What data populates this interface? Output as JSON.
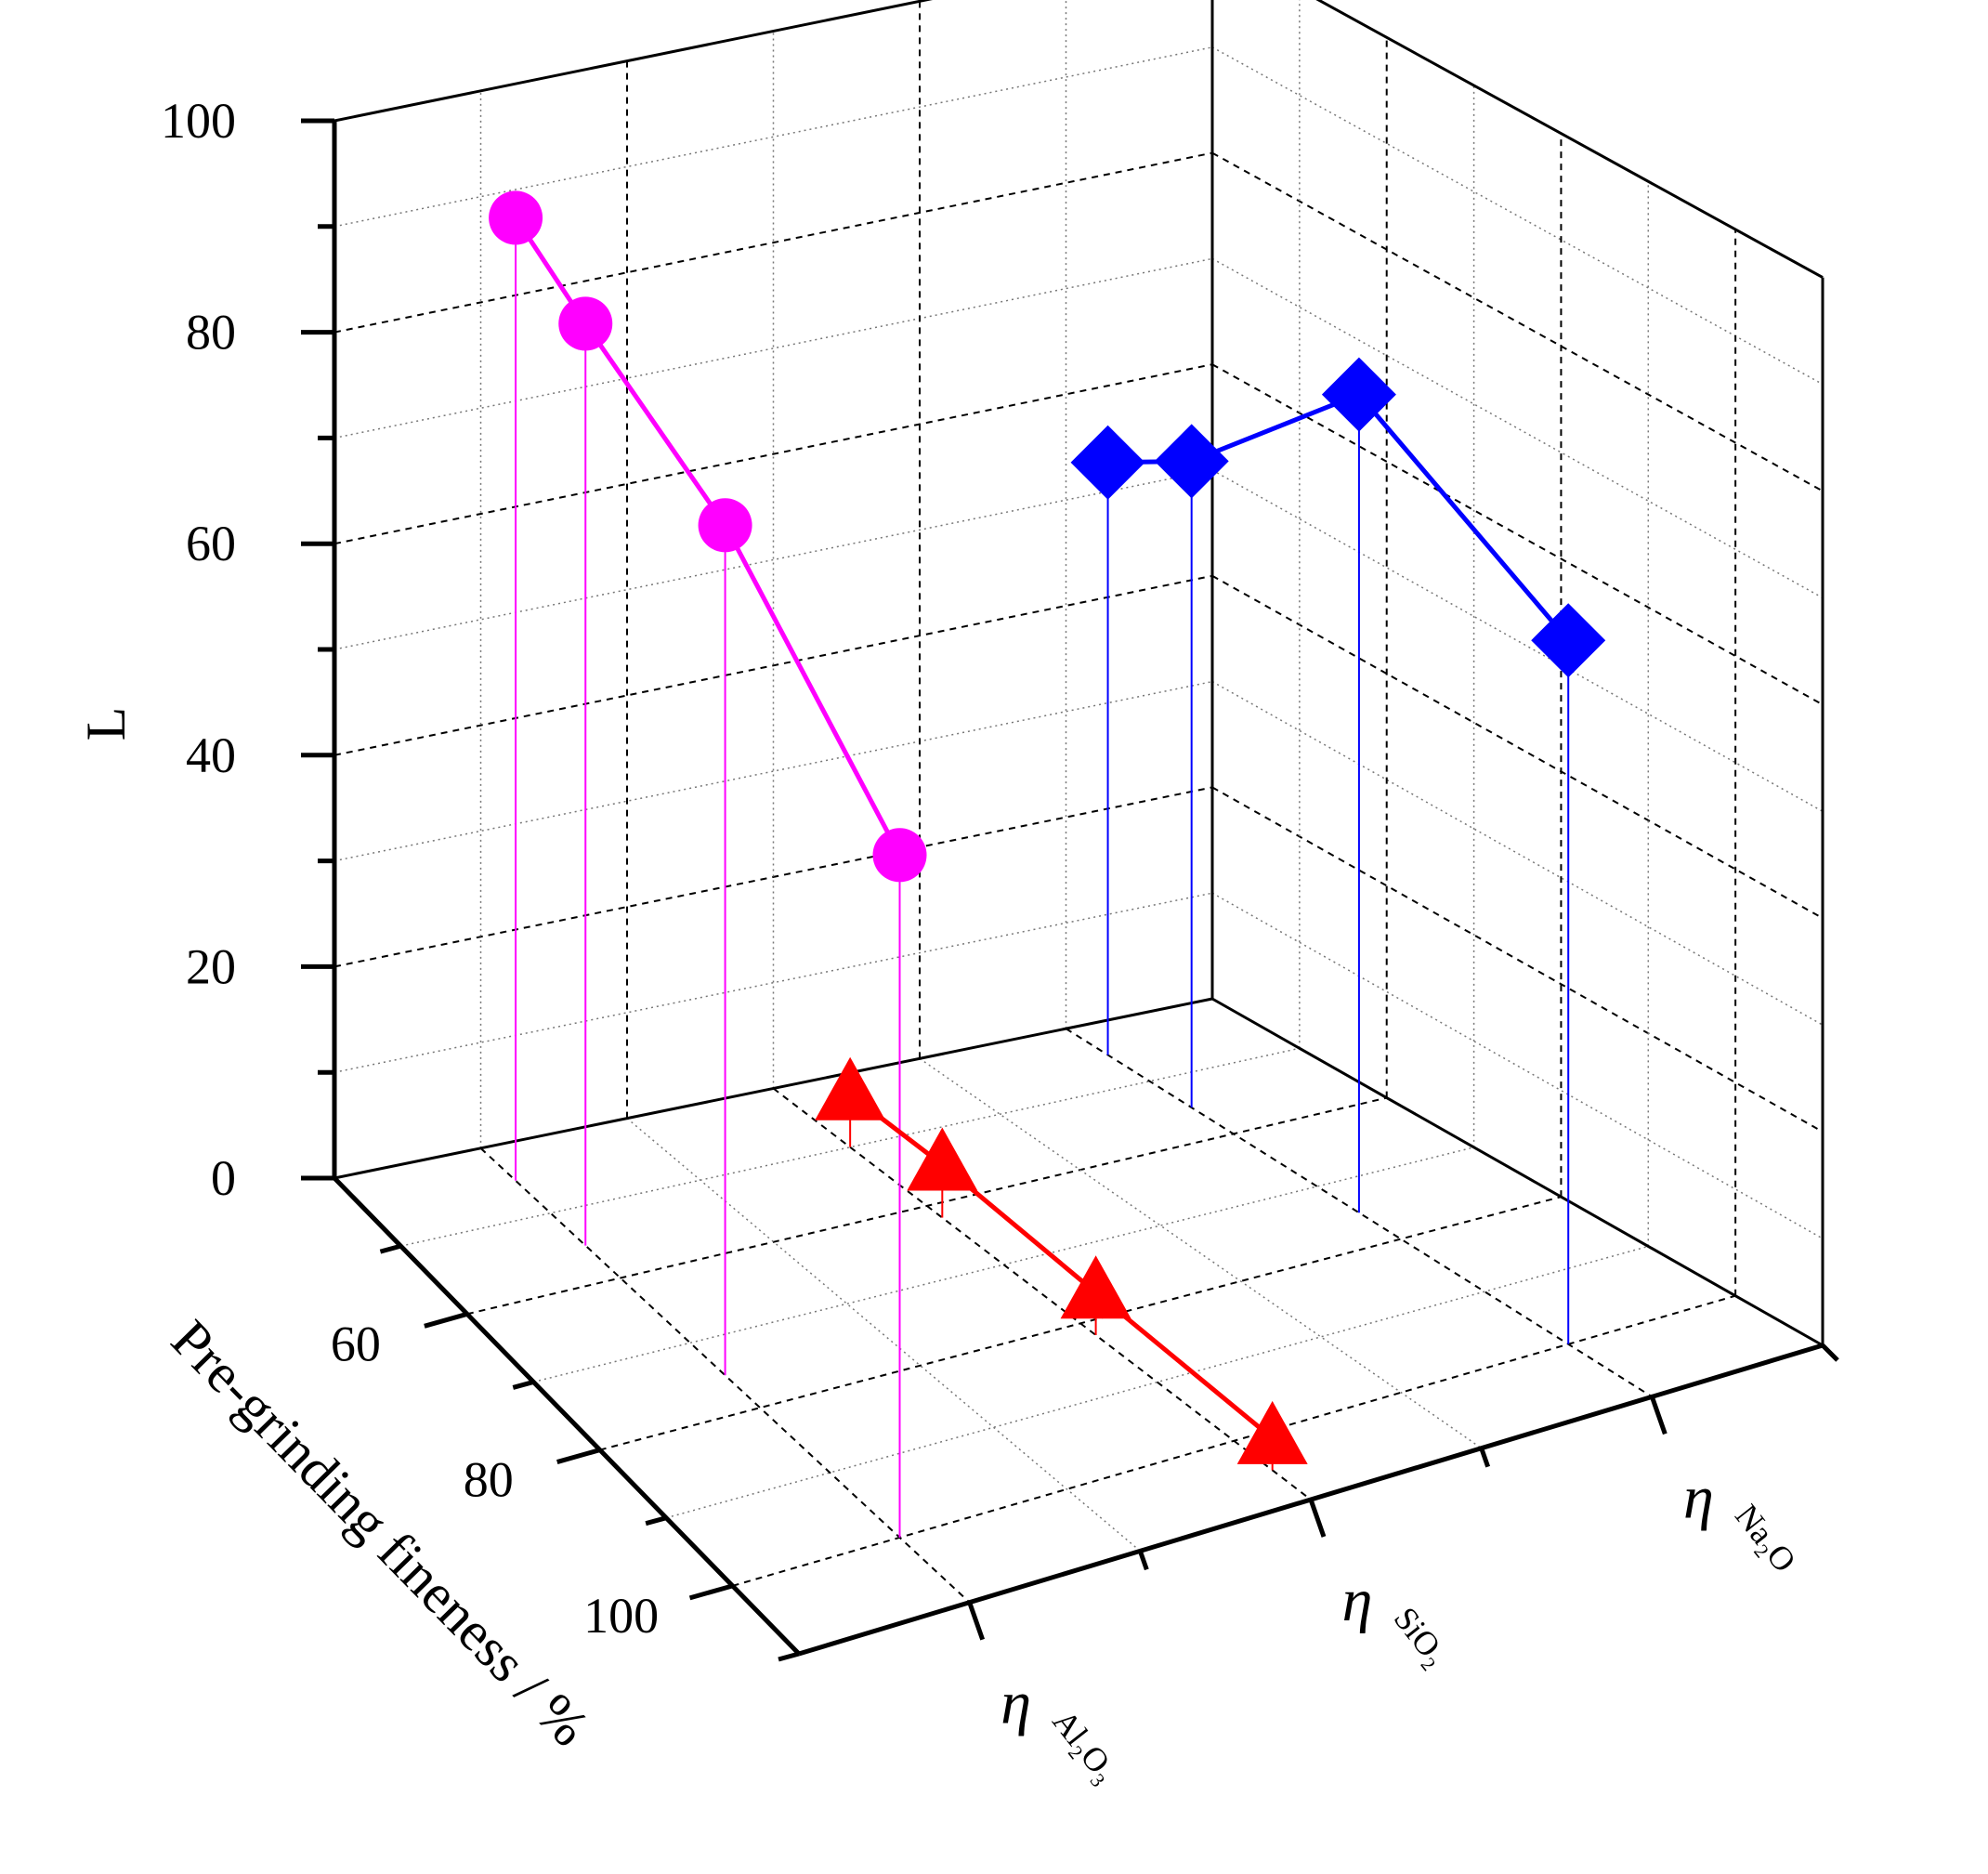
{
  "chart_data": {
    "type": "scatter",
    "projection": "3d-wall",
    "zlabel": "L",
    "ylabel": "Pre-grinding fineness / %",
    "zlim": [
      0,
      100
    ],
    "ylim": [
      40,
      110
    ],
    "ticks_z": [
      "0",
      "20",
      "40",
      "60",
      "80",
      "100"
    ],
    "ticks_y": [
      "60",
      "80",
      "100"
    ],
    "categories": [
      {
        "main": "η",
        "sub": "Al₂O₃"
      },
      {
        "main": "η",
        "sub": "SiO₂"
      },
      {
        "main": "η",
        "sub": "Na₂O"
      }
    ],
    "grid": true,
    "series": [
      {
        "category": 0,
        "marker": "circle",
        "color": "#ff00ff",
        "points": [
          {
            "fineness": 45,
            "L": 91
          },
          {
            "fineness": 55,
            "L": 87
          },
          {
            "fineness": 75,
            "L": 80
          },
          {
            "fineness": 100,
            "L": 64
          }
        ]
      },
      {
        "category": 1,
        "marker": "triangle",
        "color": "#ff0000",
        "points": [
          {
            "fineness": 50,
            "L": 5
          },
          {
            "fineness": 62,
            "L": 5
          },
          {
            "fineness": 82,
            "L": 4
          },
          {
            "fineness": 105,
            "L": 3
          }
        ]
      },
      {
        "category": 2,
        "marker": "diamond",
        "color": "#0000ff",
        "points": [
          {
            "fineness": 45,
            "L": 56
          },
          {
            "fineness": 55,
            "L": 61
          },
          {
            "fineness": 75,
            "L": 77
          },
          {
            "fineness": 100,
            "L": 66
          }
        ]
      }
    ]
  }
}
